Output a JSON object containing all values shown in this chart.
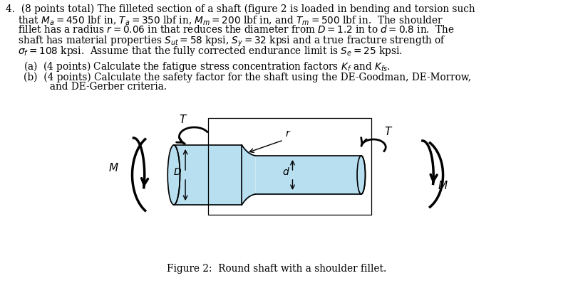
{
  "title": "Figure 2:  Round shaft with a shoulder fillet.",
  "background_color": "#ffffff",
  "text_color": "#000000",
  "shaft_color": "#b8dff0",
  "shaft_edge": "#000000",
  "line1": "4.  (8 points total) The filleted section of a shaft (figure 2 is loaded in bending and torsion such",
  "line2": "    that $M_a = 450$ lbf in, $T_a = 350$ lbf in, $M_m = 200$ lbf in, and $T_m = 500$ lbf in.  The shoulder",
  "line3": "    fillet has a radius $r = 0.06$ in that reduces the diameter from $D = 1.2$ in to $d = 0.8$ in.  The",
  "line4": "    shaft has material properties $S_{ut} = 58$ kpsi, $S_y = 32$ kpsi and a true fracture strength of",
  "line5": "    $\\sigma_f = 108$ kpsi.  Assume that the fully corrected endurance limit is $S_e = 25$ kpsi.",
  "line_a": "(a)  (4 points) Calculate the fatigue stress concentration factors $K_f$ and $K_{fs}$.",
  "line_b1": "(b)  (4 points) Calculate the safety factor for the shaft using the DE-Goodman, DE-Morrow,",
  "line_b2": "     and DE-Gerber criteria."
}
